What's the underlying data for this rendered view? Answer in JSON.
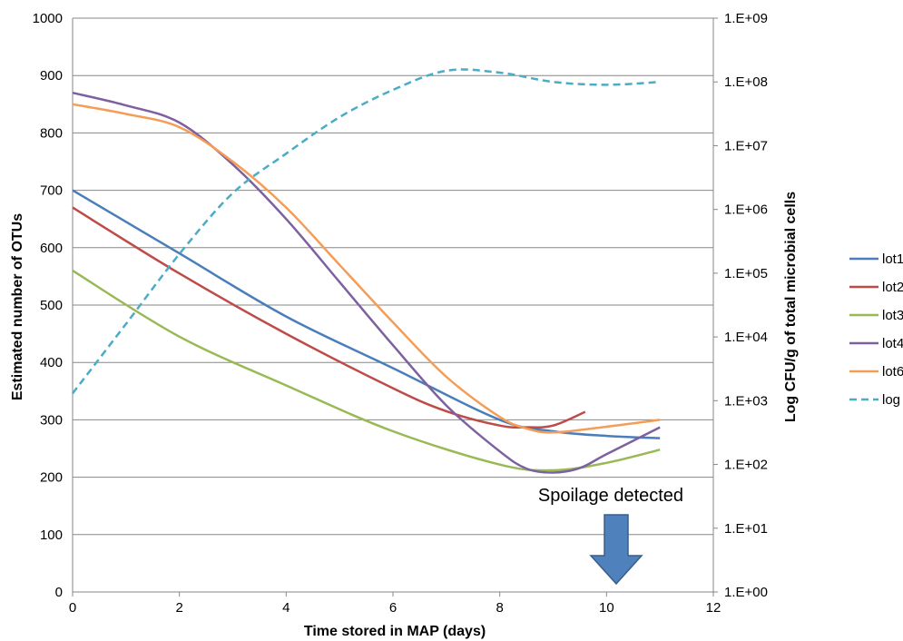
{
  "chart_data": {
    "type": "line",
    "title": "",
    "xlabel": "Time stored in MAP (days)",
    "ylabel": "Estimated number of OTUs",
    "y2label": "Log CFU/g of total microbial cells",
    "xlim": [
      0,
      12
    ],
    "ylim": [
      0,
      1000
    ],
    "y2lim_log10": [
      0,
      9
    ],
    "y2scale": "log",
    "x_ticks": [
      "0",
      "2",
      "4",
      "6",
      "8",
      "10",
      "12"
    ],
    "y_ticks": [
      "0",
      "100",
      "200",
      "300",
      "400",
      "500",
      "600",
      "700",
      "800",
      "900",
      "1000"
    ],
    "y2_ticks": [
      "1.E+00",
      "1.E+01",
      "1.E+02",
      "1.E+03",
      "1.E+04",
      "1.E+05",
      "1.E+06",
      "1.E+07",
      "1.E+08",
      "1.E+09"
    ],
    "grid": "horizontal",
    "legend_position": "right",
    "series": [
      {
        "name": "lot1",
        "axis": "left",
        "color": "#4A7EBB",
        "dash": "solid",
        "x": [
          0,
          2,
          4,
          6,
          8,
          9,
          10,
          11
        ],
        "y": [
          700,
          590,
          480,
          390,
          300,
          280,
          272,
          268
        ]
      },
      {
        "name": "lot2",
        "axis": "left",
        "color": "#BE4B48",
        "dash": "solid",
        "x": [
          0,
          2,
          4,
          6,
          7,
          8,
          8.5,
          9,
          9.6
        ],
        "y": [
          670,
          555,
          450,
          355,
          315,
          290,
          287,
          290,
          314
        ]
      },
      {
        "name": "lot3",
        "axis": "left",
        "color": "#98B954",
        "dash": "solid",
        "x": [
          0,
          2,
          4,
          6,
          8,
          9,
          10,
          11
        ],
        "y": [
          560,
          445,
          360,
          280,
          222,
          212,
          225,
          248
        ]
      },
      {
        "name": "lot4",
        "axis": "left",
        "color": "#7D60A0",
        "dash": "solid",
        "x": [
          0,
          1,
          2,
          3,
          4,
          5,
          6,
          7,
          8,
          8.5,
          9,
          9.5,
          10,
          11
        ],
        "y": [
          870,
          848,
          818,
          745,
          650,
          540,
          430,
          325,
          245,
          215,
          208,
          216,
          240,
          287
        ]
      },
      {
        "name": "lot6",
        "axis": "left",
        "color": "#F59D56",
        "dash": "solid",
        "x": [
          0,
          1,
          2,
          3,
          4,
          5,
          6,
          7,
          8,
          8.5,
          9,
          10,
          11
        ],
        "y": [
          850,
          833,
          810,
          750,
          670,
          570,
          470,
          375,
          305,
          285,
          278,
          288,
          300
        ]
      },
      {
        "name": "log",
        "axis": "right",
        "color": "#4BACC6",
        "dash": "dashed",
        "x": [
          0,
          1,
          2,
          3,
          4,
          5,
          6,
          7,
          8,
          9,
          10,
          11
        ],
        "y": [
          1300,
          16000,
          200000,
          1800000,
          7500000,
          28000000,
          75000000,
          150000000,
          140000000,
          100000000,
          90000000,
          100000000
        ]
      }
    ],
    "annotations": [
      {
        "text": "Spoilage detected",
        "x": 10.2,
        "y": 200,
        "arrow": "down"
      }
    ]
  }
}
